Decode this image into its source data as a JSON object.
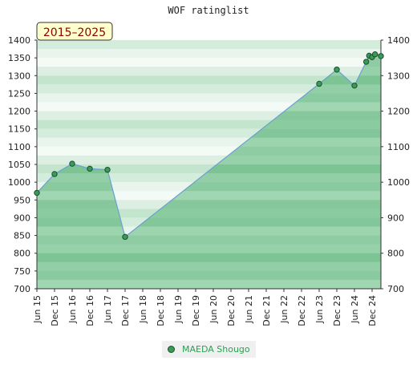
{
  "chart_data": {
    "type": "area",
    "title": "WOF ratinglist",
    "badge": "2015–2025",
    "x": [
      "2015-06",
      "2015-12",
      "2016-06",
      "2016-12",
      "2017-06",
      "2017-12",
      "2023-06",
      "2023-12",
      "2024-06",
      "2024-10",
      "2024-11",
      "2024-12",
      "2025-01",
      "2025-03"
    ],
    "series": [
      {
        "name": "MAEDA Shougo",
        "values": [
          970,
          1023,
          1052,
          1038,
          1035,
          846,
          1277,
          1317,
          1272,
          1339,
          1356,
          1352,
          1360,
          1355
        ]
      }
    ],
    "ylim": [
      700,
      1400
    ],
    "yticks": [
      700,
      750,
      800,
      850,
      900,
      950,
      1000,
      1050,
      1100,
      1150,
      1200,
      1250,
      1300,
      1350,
      1400
    ],
    "yticks_right": [
      700,
      800,
      900,
      1000,
      1100,
      1200,
      1300,
      1400
    ],
    "xticks": [
      "Jun 15",
      "Dec 15",
      "Jun 16",
      "Dec 16",
      "Jun 17",
      "Dec 17",
      "Jun 18",
      "Dec 18",
      "Jun 19",
      "Dec 19",
      "Jun 20",
      "Dec 20",
      "Jun 21",
      "Dec 21",
      "Jun 22",
      "Dec 22",
      "Jun 23",
      "Dec 23",
      "Jun 24",
      "Dec 24"
    ],
    "xtick_dates": [
      "2015-06",
      "2015-12",
      "2016-06",
      "2016-12",
      "2017-06",
      "2017-12",
      "2018-06",
      "2018-12",
      "2019-06",
      "2019-12",
      "2020-06",
      "2020-12",
      "2021-06",
      "2021-12",
      "2022-06",
      "2022-12",
      "2023-06",
      "2023-12",
      "2024-06",
      "2024-12"
    ],
    "xlim": [
      "2015-06",
      "2025-03"
    ],
    "grid": true,
    "legend_position": "bottom-center",
    "colors": {
      "area": "#5cb87a",
      "line": "#6a9fd4",
      "marker": "#3a9a5a",
      "marker_edge": "#1d4d2c",
      "band_dark": "#b7dfc4",
      "band_light": "#eef7f0",
      "badge_fill": "#ffffcc",
      "badge_text": "#8b0000"
    }
  }
}
